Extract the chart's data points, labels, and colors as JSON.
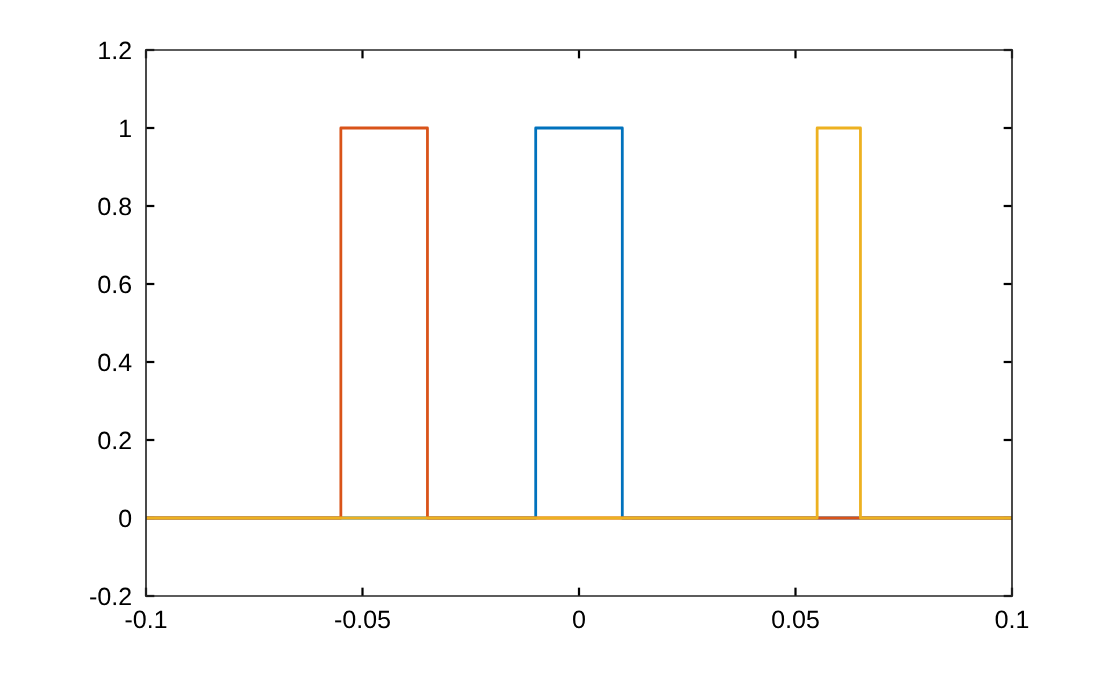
{
  "chart_data": {
    "type": "line",
    "series": [
      {
        "color": "#0072bd",
        "x": [
          -0.1,
          -0.01,
          -0.01,
          0.01,
          0.01,
          0.1
        ],
        "values": [
          0,
          0,
          1,
          1,
          0,
          0
        ]
      },
      {
        "color": "#d95319",
        "x": [
          -0.1,
          -0.055,
          -0.055,
          -0.035,
          -0.035,
          0.1
        ],
        "values": [
          0,
          0,
          1,
          1,
          0,
          0
        ]
      },
      {
        "color": "#edb120",
        "x": [
          -0.1,
          0.055,
          0.055,
          0.065,
          0.065,
          0.1
        ],
        "values": [
          0,
          0,
          1,
          1,
          0,
          0
        ]
      }
    ],
    "xlim": [
      -0.1,
      0.1
    ],
    "xticks": [
      -0.1,
      -0.05,
      0,
      0.05,
      0.1
    ],
    "ylim": [
      -0.2,
      1.2
    ],
    "yticks": [
      -0.2,
      0,
      0.2,
      0.4,
      0.6,
      0.8,
      1,
      1.2
    ],
    "grid": false,
    "marker": "none",
    "line_style": "solid"
  }
}
